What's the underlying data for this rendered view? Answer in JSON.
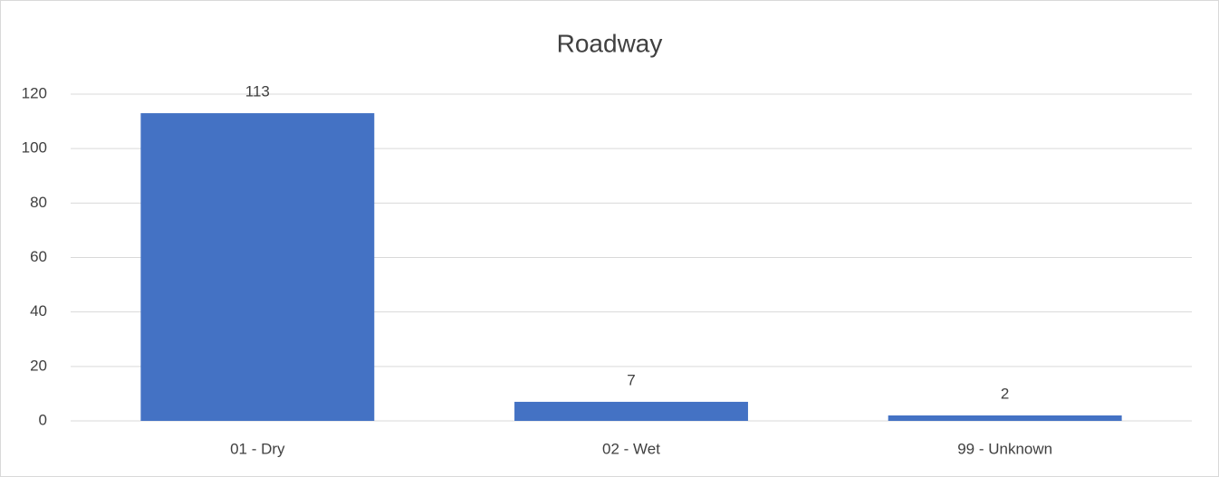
{
  "chart_data": {
    "type": "bar",
    "title": "Roadway",
    "categories": [
      "01 - Dry",
      "02 - Wet",
      "99 - Unknown"
    ],
    "values": [
      113,
      7,
      2
    ],
    "color": "#4472c4",
    "ylim": [
      0,
      120
    ],
    "yticks": [
      0,
      20,
      40,
      60,
      80,
      100,
      120
    ],
    "grid": true,
    "data_labels": true
  }
}
